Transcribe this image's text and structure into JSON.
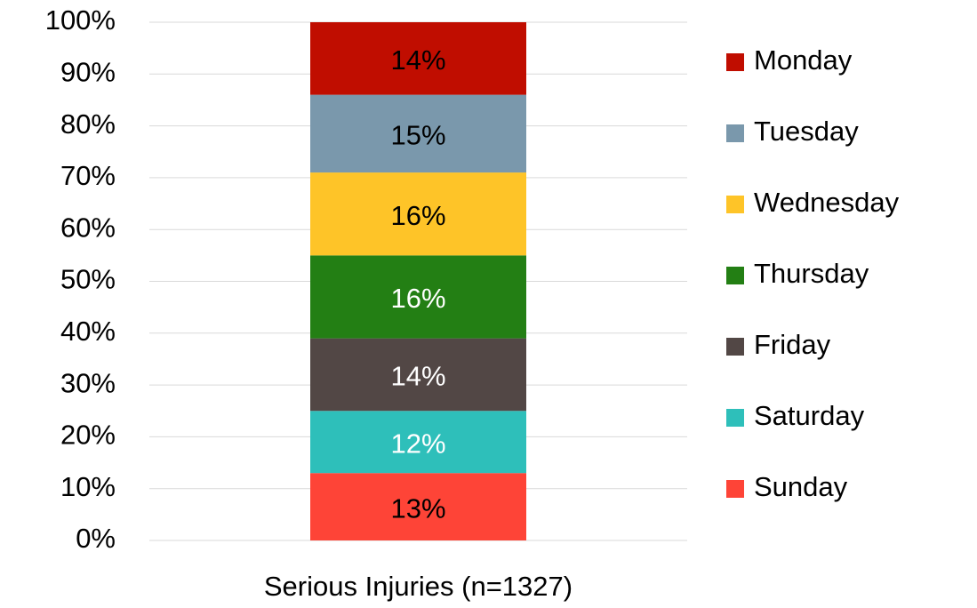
{
  "chart_data": {
    "type": "stacked_bar",
    "categories": [
      "Serious Injuries (n=1327)"
    ],
    "series": [
      {
        "name": "Sunday",
        "color": "#fe4437",
        "label_color": "#000000",
        "values": [
          13
        ],
        "value_labels": [
          "13%"
        ]
      },
      {
        "name": "Saturday",
        "color": "#2ebfba",
        "label_color": "#ffffff",
        "values": [
          12
        ],
        "value_labels": [
          "12%"
        ]
      },
      {
        "name": "Friday",
        "color": "#524745",
        "label_color": "#ffffff",
        "values": [
          14
        ],
        "value_labels": [
          "14%"
        ]
      },
      {
        "name": "Thursday",
        "color": "#237f14",
        "label_color": "#ffffff",
        "values": [
          16
        ],
        "value_labels": [
          "16%"
        ]
      },
      {
        "name": "Wednesday",
        "color": "#fec428",
        "label_color": "#000000",
        "values": [
          16
        ],
        "value_labels": [
          "16%"
        ]
      },
      {
        "name": "Tuesday",
        "color": "#7a98ac",
        "label_color": "#000000",
        "values": [
          15
        ],
        "value_labels": [
          "15%"
        ]
      },
      {
        "name": "Monday",
        "color": "#c00d00",
        "label_color": "#000000",
        "values": [
          14
        ],
        "value_labels": [
          "14%"
        ]
      }
    ],
    "ylim": [
      0,
      100
    ],
    "yticks": [
      {
        "value": 0,
        "label": "0%"
      },
      {
        "value": 10,
        "label": "10%"
      },
      {
        "value": 20,
        "label": "20%"
      },
      {
        "value": 30,
        "label": "30%"
      },
      {
        "value": 40,
        "label": "40%"
      },
      {
        "value": 50,
        "label": "50%"
      },
      {
        "value": 60,
        "label": "60%"
      },
      {
        "value": 70,
        "label": "70%"
      },
      {
        "value": 80,
        "label": "80%"
      },
      {
        "value": 90,
        "label": "90%"
      },
      {
        "value": 100,
        "label": "100%"
      }
    ],
    "grid": true,
    "legend": "right"
  }
}
